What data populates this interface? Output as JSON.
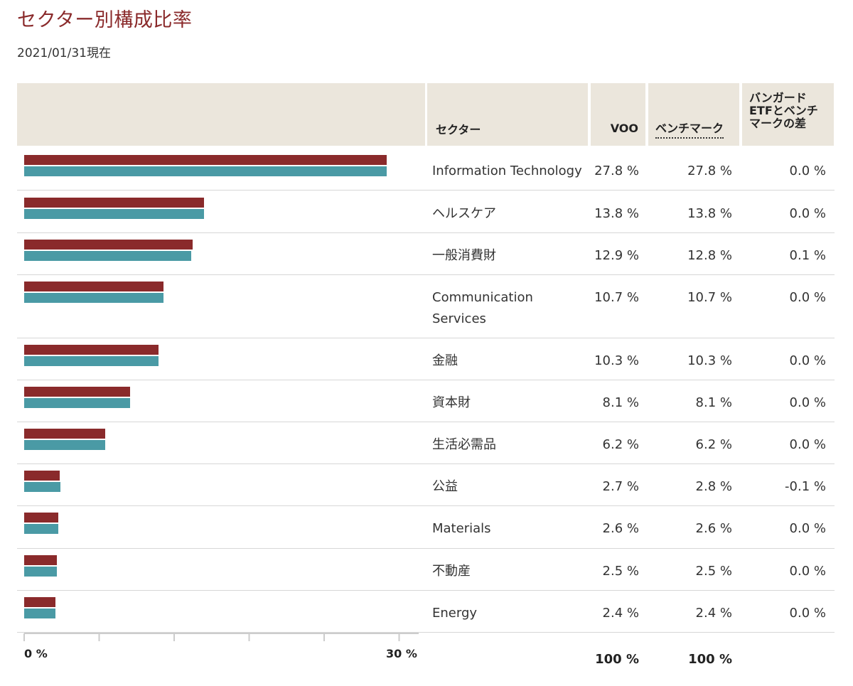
{
  "page": {
    "title": "セクター別構成比率",
    "as_of": "2021/01/31現在"
  },
  "colors": {
    "title": "#8a2a2b",
    "voo_bar": "#8a2a2b",
    "benchmark_bar": "#4a9aa5",
    "header_bg": "#ebe6dc"
  },
  "table": {
    "headers": {
      "sector": "セクター",
      "voo": "VOO",
      "benchmark": "ベンチマーク",
      "diff_lines": [
        "バンガード",
        "ETFとベンチ",
        "マークの差"
      ]
    },
    "rows": [
      {
        "sector": "Information Technology",
        "voo": "27.8 %",
        "benchmark": "27.8 %",
        "diff": "0.0 %"
      },
      {
        "sector": "ヘルスケア",
        "voo": "13.8 %",
        "benchmark": "13.8 %",
        "diff": "0.0 %"
      },
      {
        "sector": "一般消費財",
        "voo": "12.9 %",
        "benchmark": "12.8 %",
        "diff": "0.1 %"
      },
      {
        "sector": "Communication Services",
        "voo": "10.7 %",
        "benchmark": "10.7 %",
        "diff": "0.0 %"
      },
      {
        "sector": "金融",
        "voo": "10.3 %",
        "benchmark": "10.3 %",
        "diff": "0.0 %"
      },
      {
        "sector": "資本財",
        "voo": "8.1 %",
        "benchmark": "8.1 %",
        "diff": "0.0 %"
      },
      {
        "sector": "生活必需品",
        "voo": "6.2 %",
        "benchmark": "6.2 %",
        "diff": "0.0 %"
      },
      {
        "sector": "公益",
        "voo": "2.7 %",
        "benchmark": "2.8 %",
        "diff": "-0.1 %"
      },
      {
        "sector": "Materials",
        "voo": "2.6 %",
        "benchmark": "2.6 %",
        "diff": "0.0 %"
      },
      {
        "sector": "不動産",
        "voo": "2.5 %",
        "benchmark": "2.5 %",
        "diff": "0.0 %"
      },
      {
        "sector": "Energy",
        "voo": "2.4 %",
        "benchmark": "2.4 %",
        "diff": "0.0 %"
      }
    ],
    "totals": {
      "voo": "100 %",
      "benchmark": "100 %"
    }
  },
  "chart_data": {
    "type": "bar",
    "orientation": "horizontal",
    "categories": [
      "Information Technology",
      "ヘルスケア",
      "一般消費財",
      "Communication Services",
      "金融",
      "資本財",
      "生活必需品",
      "公益",
      "Materials",
      "不動産",
      "Energy"
    ],
    "series": [
      {
        "name": "VOO",
        "values": [
          27.8,
          13.8,
          12.9,
          10.7,
          10.3,
          8.1,
          6.2,
          2.7,
          2.6,
          2.5,
          2.4
        ]
      },
      {
        "name": "ベンチマーク",
        "values": [
          27.8,
          13.8,
          12.8,
          10.7,
          10.3,
          8.1,
          6.2,
          2.8,
          2.6,
          2.5,
          2.4
        ]
      }
    ],
    "xlim": [
      0,
      30
    ],
    "x_tick_labels": [
      "0 %",
      "30 %"
    ],
    "grid": false
  }
}
